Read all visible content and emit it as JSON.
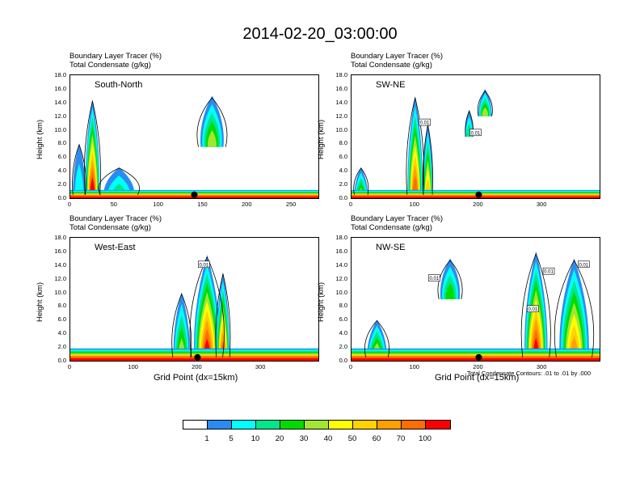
{
  "chart_data": {
    "type": "heatmap",
    "title": "2014-02-20_03:00:00",
    "shaded_field": "Boundary Layer Tracer   (%)",
    "contour_field": "Total Condensate   (g/kg)",
    "contour_note": "Total Condensate Contours: .01 to .01 by .000",
    "xlabel": "Grid Point (dx=15km)",
    "ylabel": "Height (km)",
    "ylim": [
      0,
      18
    ],
    "yticks": [
      "0.0",
      "2.0",
      "4.0",
      "6.0",
      "8.0",
      "10.0",
      "12.0",
      "14.0",
      "16.0",
      "18.0"
    ],
    "colorbar": {
      "levels": [
        "1",
        "5",
        "10",
        "20",
        "30",
        "40",
        "50",
        "60",
        "70",
        "100"
      ],
      "colors": [
        "#ffffff",
        "#2a8cf0",
        "#00ffff",
        "#00e68c",
        "#00dc00",
        "#a0e632",
        "#ffff00",
        "#ffd200",
        "#ffa000",
        "#ff6e00",
        "#fa0000"
      ]
    },
    "panels": [
      {
        "label": "South-North",
        "xlim": [
          0,
          280
        ],
        "xticks": [
          0,
          50,
          100,
          150,
          200,
          250
        ],
        "boundary_layer_depth_km": 1.2,
        "plumes": [
          {
            "x": 25,
            "top_km": 14.5,
            "width": 12,
            "max": 100
          },
          {
            "x": 10,
            "top_km": 8,
            "width": 10,
            "max": 5
          },
          {
            "x": 55,
            "top_km": 4.5,
            "width": 30,
            "max": 10
          }
        ],
        "cells": [
          {
            "x": 160,
            "base_km": 7.5,
            "top_km": 15,
            "width": 22,
            "max": 30
          }
        ],
        "marker_x": 140
      },
      {
        "label": "SW-NE",
        "xlim": [
          0,
          390
        ],
        "xticks": [
          0,
          100,
          200,
          300
        ],
        "boundary_layer_depth_km": 1.2,
        "plumes": [
          {
            "x": 15,
            "top_km": 4.5,
            "width": 15,
            "max": 30
          },
          {
            "x": 100,
            "top_km": 15,
            "width": 18,
            "max": 70
          },
          {
            "x": 120,
            "top_km": 11,
            "width": 10,
            "max": 50
          }
        ],
        "cells": [
          {
            "x": 185,
            "base_km": 9,
            "top_km": 13,
            "width": 8,
            "max": 10
          },
          {
            "x": 210,
            "base_km": 12,
            "top_km": 16,
            "width": 15,
            "max": 30
          }
        ],
        "marker_x": 200
      },
      {
        "label": "West-East",
        "xlim": [
          0,
          390
        ],
        "xticks": [
          0,
          100,
          200,
          300
        ],
        "boundary_layer_depth_km": 1.8,
        "plumes": [
          {
            "x": 175,
            "top_km": 10,
            "width": 20,
            "max": 30
          },
          {
            "x": 215,
            "top_km": 15.5,
            "width": 35,
            "max": 100
          },
          {
            "x": 240,
            "top_km": 13,
            "width": 15,
            "max": 70
          }
        ],
        "cells": [],
        "marker_x": 200
      },
      {
        "label": "NW-SE",
        "xlim": [
          0,
          390
        ],
        "xticks": [
          0,
          100,
          200,
          300
        ],
        "boundary_layer_depth_km": 1.8,
        "plumes": [
          {
            "x": 40,
            "top_km": 6,
            "width": 25,
            "max": 40
          },
          {
            "x": 290,
            "top_km": 16,
            "width": 30,
            "max": 100
          },
          {
            "x": 350,
            "top_km": 15,
            "width": 40,
            "max": 60
          }
        ],
        "cells": [
          {
            "x": 155,
            "base_km": 9,
            "top_km": 15,
            "width": 25,
            "max": 20
          }
        ],
        "marker_x": 200
      }
    ],
    "contour_boxes": [
      {
        "panel": 1,
        "x": 115,
        "y_km": 11,
        "text": "0.01"
      },
      {
        "panel": 1,
        "x": 195,
        "y_km": 9.5,
        "text": "0.01"
      },
      {
        "panel": 2,
        "x": 210,
        "y_km": 14,
        "text": "0.01"
      },
      {
        "panel": 3,
        "x": 130,
        "y_km": 12,
        "text": "0.01"
      },
      {
        "panel": 3,
        "x": 285,
        "y_km": 7.5,
        "text": "0.01"
      },
      {
        "panel": 3,
        "x": 310,
        "y_km": 13,
        "text": "0.01"
      },
      {
        "panel": 3,
        "x": 365,
        "y_km": 14,
        "text": "0.01"
      }
    ]
  }
}
